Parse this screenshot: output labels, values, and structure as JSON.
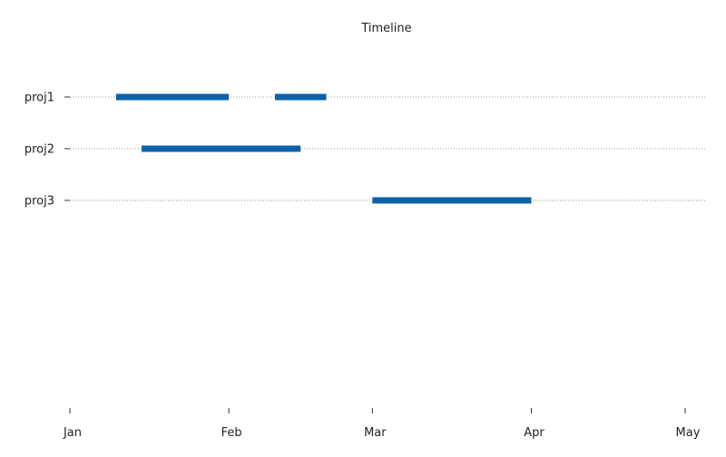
{
  "chart_data": {
    "type": "timeline",
    "title": "Timeline",
    "xlabel": "",
    "ylabel": "",
    "x_tick_labels": [
      "Jan",
      "Feb",
      "Mar",
      "Apr",
      "May"
    ],
    "xlim": [
      "2023-01-01",
      "2023-05-01"
    ],
    "categories": [
      "proj1",
      "proj2",
      "proj3"
    ],
    "series": [
      {
        "category": "proj1",
        "segments": [
          {
            "start": "2023-01-10",
            "end": "2023-02-01"
          },
          {
            "start": "2023-02-10",
            "end": "2023-02-20"
          }
        ]
      },
      {
        "category": "proj2",
        "segments": [
          {
            "start": "2023-01-15",
            "end": "2023-02-15"
          }
        ]
      },
      {
        "category": "proj3",
        "segments": [
          {
            "start": "2023-03-01",
            "end": "2023-04-01"
          }
        ]
      }
    ],
    "grid": "horizontal-dotted",
    "legend": "none",
    "colors": {
      "bar": "#0b62ab",
      "grid": "#9a9a9a",
      "axis_tick": "#333333",
      "text": "#222222"
    }
  }
}
